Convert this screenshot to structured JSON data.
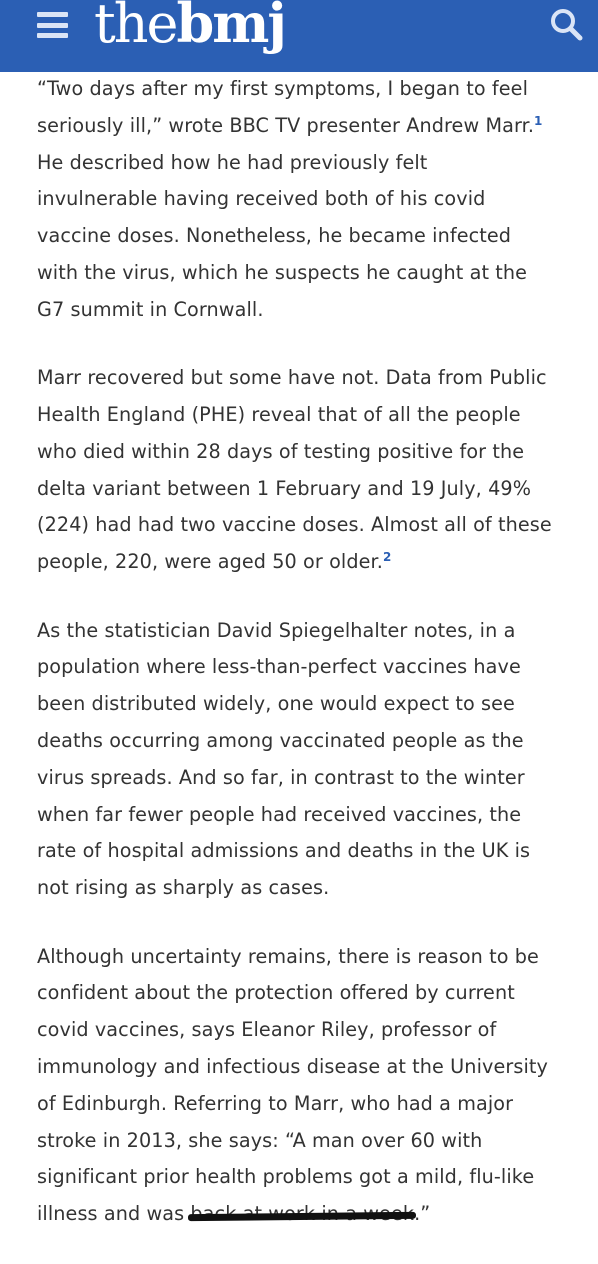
{
  "header": {
    "logo_thin": "the",
    "logo_bold": "bmj",
    "menu_icon": "hamburger-menu-icon",
    "search_icon": "search-icon",
    "colors": {
      "background": "#2b5fb4",
      "logo": "#ffffff",
      "link": "#2b5fb4",
      "text": "#333333"
    }
  },
  "article": {
    "p1": {
      "lines": [
        "“Two days after my first symptoms, I began to feel",
        "seriously ill,” wrote BBC TV presenter Andrew Marr.",
        "He described how he had previously felt",
        "invulnerable having received both of his covid",
        "vaccine doses. Nonetheless, he became infected",
        "with the virus, which he suspects he caught at the",
        "G7 summit in Cornwall."
      ],
      "cite": "1"
    },
    "p2": {
      "lines": [
        "Marr recovered but some have not. Data from Public",
        "Health England (PHE) reveal that of all the people",
        "who died within 28 days of testing positive for the",
        "delta variant between 1 February and 19 July, 49%",
        "(224) had had two vaccine doses. Almost all of these",
        "people, 220, were aged 50 or older."
      ],
      "cite": "2"
    },
    "p3": {
      "lines": [
        "As the statistician David Spiegelhalter notes, in a",
        "population where less-than-perfect vaccines have",
        "been distributed widely, one would expect to see",
        "deaths occurring among vaccinated people as the",
        "virus spreads. And so far, in contrast to the winter",
        "when far fewer people had received vaccines, the",
        "rate of hospital admissions and deaths in the UK is",
        "not rising as sharply as cases."
      ]
    },
    "p4": {
      "lines": [
        "Although uncertainty remains, there is reason to be",
        "confident about the protection offered by current",
        "covid vaccines, says Eleanor Riley, professor of",
        "immunology and infectious disease at the University",
        "of Edinburgh. Referring to Marr, who had a major",
        "stroke in 2013, she says: “A man over 60 with",
        "significant prior health problems got a mild, flu-like"
      ],
      "last_line_before": "illness and was ",
      "last_line_redacted": "back at work in a week",
      "last_line_after": ".”"
    }
  }
}
